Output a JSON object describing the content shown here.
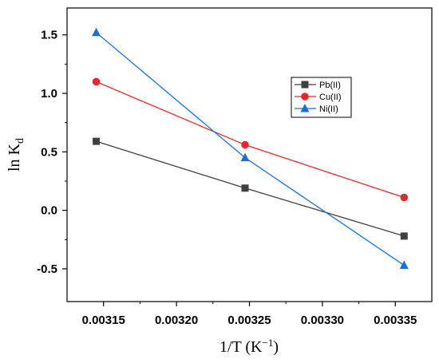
{
  "chart_data": {
    "type": "line",
    "xlabel": {
      "main": "1/T (K",
      "sup": "−1",
      "tail": ")"
    },
    "ylabel": {
      "main": "ln K",
      "sub": "d"
    },
    "xlim": [
      0.003125,
      0.003375
    ],
    "ylim": [
      -0.78,
      1.73
    ],
    "x_ticks": [
      {
        "value": 0.00315,
        "label": "0.00315"
      },
      {
        "value": 0.0032,
        "label": "0.00320"
      },
      {
        "value": 0.00325,
        "label": "0.00325"
      },
      {
        "value": 0.0033,
        "label": "0.00330"
      },
      {
        "value": 0.00335,
        "label": "0.00335"
      }
    ],
    "y_ticks": [
      {
        "value": 1.5,
        "label": "1.5"
      },
      {
        "value": 1.0,
        "label": "1.0"
      },
      {
        "value": 0.5,
        "label": "0.5"
      },
      {
        "value": 0.0,
        "label": "0.0"
      },
      {
        "value": -0.5,
        "label": "-0.5"
      }
    ],
    "x": [
      0.003145,
      0.003247,
      0.003356
    ],
    "series": [
      {
        "name": "Pb(II)",
        "color": "#404040",
        "marker": "square",
        "values": [
          0.59,
          0.19,
          -0.22
        ]
      },
      {
        "name": "Cu(II)",
        "color": "#e8262b",
        "marker": "circle",
        "values": [
          1.1,
          0.56,
          0.11
        ]
      },
      {
        "name": "Ni(II)",
        "color": "#1a6fd6",
        "marker": "triangle",
        "values": [
          1.52,
          0.45,
          -0.47
        ]
      }
    ],
    "legend_position": "top-right",
    "grid": false
  }
}
